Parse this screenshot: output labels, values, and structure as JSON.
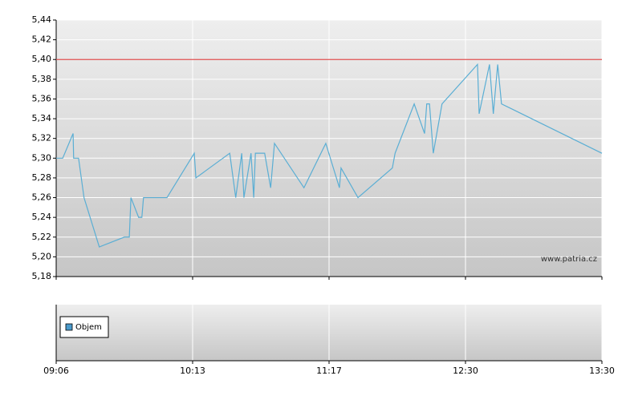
{
  "chart_data": [
    {
      "type": "line",
      "color": "#5aaed4",
      "x": [
        0,
        1.2,
        3.1,
        3.2,
        4.1,
        5.1,
        7.9,
        12.5,
        13.4,
        13.7,
        15.1,
        15.7,
        16.0,
        20.3,
        25.3,
        25.6,
        31.8,
        32.9,
        34.0,
        34.4,
        35.7,
        36.2,
        36.5,
        38.2,
        39.3,
        40.0,
        45.4,
        49.4,
        51.9,
        52.2,
        55.3,
        61.6,
        62.1,
        65.6,
        67.5,
        67.9,
        68.4,
        69.1,
        70.7,
        77.2,
        77.5,
        79.4,
        80.1,
        80.9,
        81.6,
        100
      ],
      "values": [
        5.3,
        5.3,
        5.325,
        5.3,
        5.3,
        5.26,
        5.21,
        5.22,
        5.22,
        5.26,
        5.24,
        5.24,
        5.26,
        5.26,
        5.305,
        5.28,
        5.305,
        5.26,
        5.305,
        5.26,
        5.305,
        5.26,
        5.305,
        5.305,
        5.27,
        5.315,
        5.27,
        5.315,
        5.27,
        5.29,
        5.26,
        5.29,
        5.305,
        5.355,
        5.325,
        5.355,
        5.355,
        5.305,
        5.355,
        5.395,
        5.345,
        5.395,
        5.345,
        5.395,
        5.355,
        5.305
      ],
      "reference_line": {
        "value": 5.4,
        "color": "#e05050"
      },
      "annotation": "www.patria.cz",
      "xlim": [
        0,
        100
      ],
      "xticks": [
        {
          "value": 0,
          "label": "09:06"
        },
        {
          "value": 25,
          "label": "10:13"
        },
        {
          "value": 50,
          "label": "11:17"
        },
        {
          "value": 75,
          "label": "12:30"
        },
        {
          "value": 100,
          "label": "13:30"
        }
      ],
      "ylim": [
        5.18,
        5.44
      ],
      "yticks": [
        {
          "value": 5.18,
          "label": "5,18"
        },
        {
          "value": 5.2,
          "label": "5,20"
        },
        {
          "value": 5.22,
          "label": "5,22"
        },
        {
          "value": 5.24,
          "label": "5,24"
        },
        {
          "value": 5.26,
          "label": "5,26"
        },
        {
          "value": 5.28,
          "label": "5,28"
        },
        {
          "value": 5.3,
          "label": "5,30"
        },
        {
          "value": 5.32,
          "label": "5,32"
        },
        {
          "value": 5.34,
          "label": "5,34"
        },
        {
          "value": 5.36,
          "label": "5,36"
        },
        {
          "value": 5.38,
          "label": "5,38"
        },
        {
          "value": 5.4,
          "label": "5,40"
        },
        {
          "value": 5.42,
          "label": "5,42"
        },
        {
          "value": 5.44,
          "label": "5,44"
        }
      ],
      "grid": true
    },
    {
      "type": "bar",
      "series": [
        {
          "name": "Objem",
          "color": "#4a9acb",
          "values": []
        }
      ],
      "xlim": [
        0,
        100
      ],
      "xticks": [
        {
          "value": 0,
          "label": "09:06"
        },
        {
          "value": 25,
          "label": "10:13"
        },
        {
          "value": 50,
          "label": "11:17"
        },
        {
          "value": 75,
          "label": "12:30"
        },
        {
          "value": 100,
          "label": "13:30"
        }
      ],
      "grid": true
    }
  ]
}
